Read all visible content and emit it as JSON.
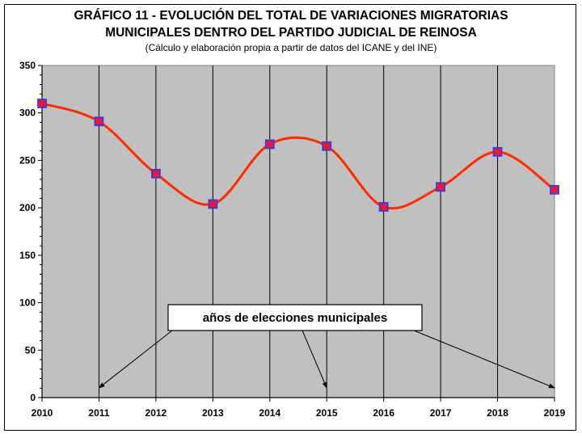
{
  "chart_data": {
    "type": "line",
    "title": "GRÁFICO 11 - EVOLUCIÓN DEL TOTAL DE VARIACIONES MIGRATORIAS",
    "title_line2": "MUNICIPALES DENTRO DEL PARTIDO JUDICIAL DE REINOSA",
    "subtitle": "(Cálculo y elaboración propia a partir de datos del ICANE y del INE)",
    "x": [
      "2010",
      "2011",
      "2012",
      "2013",
      "2014",
      "2015",
      "2016",
      "2017",
      "2018",
      "2019"
    ],
    "series": [
      {
        "values": [
          310,
          291,
          236,
          204,
          267,
          265,
          201,
          222,
          259,
          219
        ]
      }
    ],
    "y_ticks": [
      "0",
      "50",
      "100",
      "150",
      "200",
      "250",
      "300",
      "350"
    ],
    "ylim": [
      0,
      350
    ],
    "grid": "vertical",
    "plot_background": "#c0c0c0",
    "line_color": "#ff2a00",
    "marker_fill": "#e8183a",
    "marker_edge": "#3a3adf",
    "annotation": {
      "text": "años de elecciones municipales",
      "targets": [
        "2011",
        "2015",
        "2019"
      ]
    }
  }
}
